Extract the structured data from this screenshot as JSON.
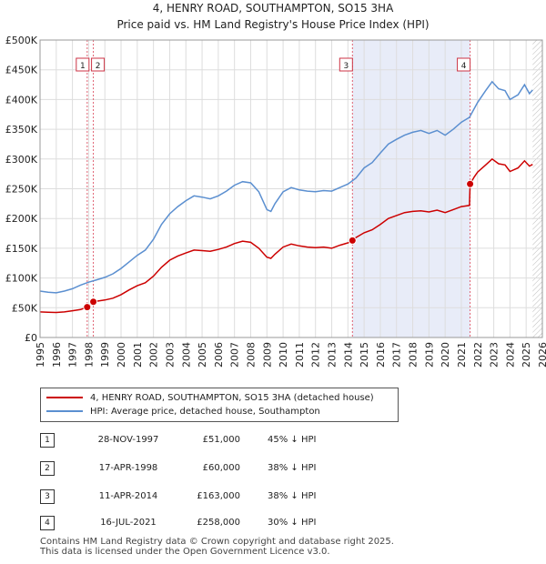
{
  "title": "4, HENRY ROAD, SOUTHAMPTON, SO15 3HA",
  "subtitle": "Price paid vs. HM Land Registry's House Price Index (HPI)",
  "chart_data": {
    "type": "line",
    "title": "4, HENRY ROAD, SOUTHAMPTON, SO15 3HA",
    "subtitle": "Price paid vs. HM Land Registry's House Price Index (HPI)",
    "xlabel": "",
    "ylabel": "",
    "xlim": [
      1995,
      2026
    ],
    "ylim": [
      0,
      500000
    ],
    "x_ticks": [
      1995,
      1996,
      1997,
      1998,
      1999,
      2000,
      2001,
      2002,
      2003,
      2004,
      2005,
      2006,
      2007,
      2008,
      2009,
      2010,
      2011,
      2012,
      2013,
      2014,
      2015,
      2016,
      2017,
      2018,
      2019,
      2020,
      2021,
      2022,
      2023,
      2024,
      2025,
      2026
    ],
    "y_ticks": [
      {
        "value": 0,
        "label": "£0"
      },
      {
        "value": 50000,
        "label": "£50K"
      },
      {
        "value": 100000,
        "label": "£100K"
      },
      {
        "value": 150000,
        "label": "£150K"
      },
      {
        "value": 200000,
        "label": "£200K"
      },
      {
        "value": 250000,
        "label": "£250K"
      },
      {
        "value": 300000,
        "label": "£300K"
      },
      {
        "value": 350000,
        "label": "£350K"
      },
      {
        "value": 400000,
        "label": "£400K"
      },
      {
        "value": 450000,
        "label": "£450K"
      },
      {
        "value": 500000,
        "label": "£500K"
      }
    ],
    "grid": true,
    "series": [
      {
        "name": "4, HENRY ROAD, SOUTHAMPTON, SO15 3HA (detached house)",
        "color": "#cc0000",
        "points": [
          [
            1995.0,
            43000
          ],
          [
            1995.5,
            42500
          ],
          [
            1996.0,
            42000
          ],
          [
            1996.5,
            43000
          ],
          [
            1997.0,
            45000
          ],
          [
            1997.5,
            47000
          ],
          [
            1997.91,
            51000
          ],
          [
            1998.29,
            60000
          ],
          [
            1998.5,
            61000
          ],
          [
            1999.0,
            63000
          ],
          [
            1999.5,
            66000
          ],
          [
            2000.0,
            72000
          ],
          [
            2000.5,
            80000
          ],
          [
            2001.0,
            87000
          ],
          [
            2001.5,
            92000
          ],
          [
            2002.0,
            103000
          ],
          [
            2002.5,
            118000
          ],
          [
            2003.0,
            130000
          ],
          [
            2003.5,
            137000
          ],
          [
            2004.0,
            142000
          ],
          [
            2004.5,
            147000
          ],
          [
            2005.0,
            146000
          ],
          [
            2005.5,
            145000
          ],
          [
            2006.0,
            148000
          ],
          [
            2006.5,
            152000
          ],
          [
            2007.0,
            158000
          ],
          [
            2007.5,
            162000
          ],
          [
            2008.0,
            160000
          ],
          [
            2008.5,
            150000
          ],
          [
            2009.0,
            135000
          ],
          [
            2009.25,
            133000
          ],
          [
            2009.5,
            140000
          ],
          [
            2010.0,
            152000
          ],
          [
            2010.5,
            157000
          ],
          [
            2011.0,
            154000
          ],
          [
            2011.5,
            152000
          ],
          [
            2012.0,
            151000
          ],
          [
            2012.5,
            152000
          ],
          [
            2013.0,
            150000
          ],
          [
            2013.5,
            155000
          ],
          [
            2014.0,
            159000
          ],
          [
            2014.28,
            163000
          ],
          [
            2014.5,
            168000
          ],
          [
            2015.0,
            176000
          ],
          [
            2015.5,
            181000
          ],
          [
            2016.0,
            190000
          ],
          [
            2016.5,
            200000
          ],
          [
            2017.0,
            205000
          ],
          [
            2017.5,
            210000
          ],
          [
            2018.0,
            212000
          ],
          [
            2018.5,
            213000
          ],
          [
            2019.0,
            211000
          ],
          [
            2019.5,
            214000
          ],
          [
            2020.0,
            210000
          ],
          [
            2020.5,
            215000
          ],
          [
            2021.0,
            220000
          ],
          [
            2021.5,
            222000
          ],
          [
            2021.54,
            258000
          ],
          [
            2021.8,
            270000
          ],
          [
            2022.0,
            278000
          ],
          [
            2022.5,
            290000
          ],
          [
            2022.9,
            300000
          ],
          [
            2023.3,
            292000
          ],
          [
            2023.7,
            290000
          ],
          [
            2024.0,
            279000
          ],
          [
            2024.5,
            285000
          ],
          [
            2024.9,
            297000
          ],
          [
            2025.2,
            288000
          ],
          [
            2025.4,
            291000
          ]
        ]
      },
      {
        "name": "HPI: Average price, detached house, Southampton",
        "color": "#5b8fd0",
        "points": [
          [
            1995.0,
            78000
          ],
          [
            1995.5,
            76000
          ],
          [
            1996.0,
            75000
          ],
          [
            1996.5,
            78000
          ],
          [
            1997.0,
            82000
          ],
          [
            1997.5,
            88000
          ],
          [
            1998.0,
            93000
          ],
          [
            1998.5,
            97000
          ],
          [
            1999.0,
            101000
          ],
          [
            1999.5,
            107000
          ],
          [
            2000.0,
            116000
          ],
          [
            2000.5,
            127000
          ],
          [
            2001.0,
            138000
          ],
          [
            2001.5,
            147000
          ],
          [
            2002.0,
            165000
          ],
          [
            2002.5,
            190000
          ],
          [
            2003.0,
            208000
          ],
          [
            2003.5,
            220000
          ],
          [
            2004.0,
            230000
          ],
          [
            2004.5,
            238000
          ],
          [
            2005.0,
            236000
          ],
          [
            2005.5,
            233000
          ],
          [
            2006.0,
            238000
          ],
          [
            2006.5,
            246000
          ],
          [
            2007.0,
            256000
          ],
          [
            2007.5,
            262000
          ],
          [
            2008.0,
            260000
          ],
          [
            2008.5,
            245000
          ],
          [
            2009.0,
            215000
          ],
          [
            2009.25,
            212000
          ],
          [
            2009.5,
            225000
          ],
          [
            2010.0,
            245000
          ],
          [
            2010.5,
            252000
          ],
          [
            2011.0,
            248000
          ],
          [
            2011.5,
            246000
          ],
          [
            2012.0,
            245000
          ],
          [
            2012.5,
            247000
          ],
          [
            2013.0,
            246000
          ],
          [
            2013.5,
            252000
          ],
          [
            2014.0,
            258000
          ],
          [
            2014.5,
            268000
          ],
          [
            2015.0,
            285000
          ],
          [
            2015.5,
            294000
          ],
          [
            2016.0,
            310000
          ],
          [
            2016.5,
            325000
          ],
          [
            2017.0,
            333000
          ],
          [
            2017.5,
            340000
          ],
          [
            2018.0,
            345000
          ],
          [
            2018.5,
            348000
          ],
          [
            2019.0,
            343000
          ],
          [
            2019.5,
            348000
          ],
          [
            2020.0,
            340000
          ],
          [
            2020.5,
            350000
          ],
          [
            2021.0,
            362000
          ],
          [
            2021.5,
            370000
          ],
          [
            2022.0,
            395000
          ],
          [
            2022.5,
            415000
          ],
          [
            2022.9,
            430000
          ],
          [
            2023.3,
            418000
          ],
          [
            2023.7,
            415000
          ],
          [
            2024.0,
            400000
          ],
          [
            2024.5,
            408000
          ],
          [
            2024.9,
            425000
          ],
          [
            2025.2,
            410000
          ],
          [
            2025.4,
            416000
          ]
        ]
      }
    ],
    "transactions": [
      {
        "id": "1",
        "x": 1997.91,
        "price": 51000
      },
      {
        "id": "2",
        "x": 1998.29,
        "price": 60000
      },
      {
        "id": "3",
        "x": 2014.28,
        "price": 163000
      },
      {
        "id": "4",
        "x": 2021.54,
        "price": 258000
      }
    ],
    "shaded_regions": [
      [
        2014.28,
        2021.54
      ]
    ],
    "hatched_region": [
      2025.4,
      2026
    ]
  },
  "legend": [
    {
      "label": "4, HENRY ROAD, SOUTHAMPTON, SO15 3HA (detached house)",
      "color": "#cc0000"
    },
    {
      "label": "HPI: Average price, detached house, Southampton",
      "color": "#5b8fd0"
    }
  ],
  "transactions_table": [
    {
      "id": "1",
      "date": "28-NOV-1997",
      "price": "£51,000",
      "hpi": "45% ↓ HPI"
    },
    {
      "id": "2",
      "date": "17-APR-1998",
      "price": "£60,000",
      "hpi": "38% ↓ HPI"
    },
    {
      "id": "3",
      "date": "11-APR-2014",
      "price": "£163,000",
      "hpi": "38% ↓ HPI"
    },
    {
      "id": "4",
      "date": "16-JUL-2021",
      "price": "£258,000",
      "hpi": "30% ↓ HPI"
    }
  ],
  "footer": {
    "line1": "Contains HM Land Registry data © Crown copyright and database right 2025.",
    "line2": "This data is licensed under the Open Government Licence v3.0."
  }
}
